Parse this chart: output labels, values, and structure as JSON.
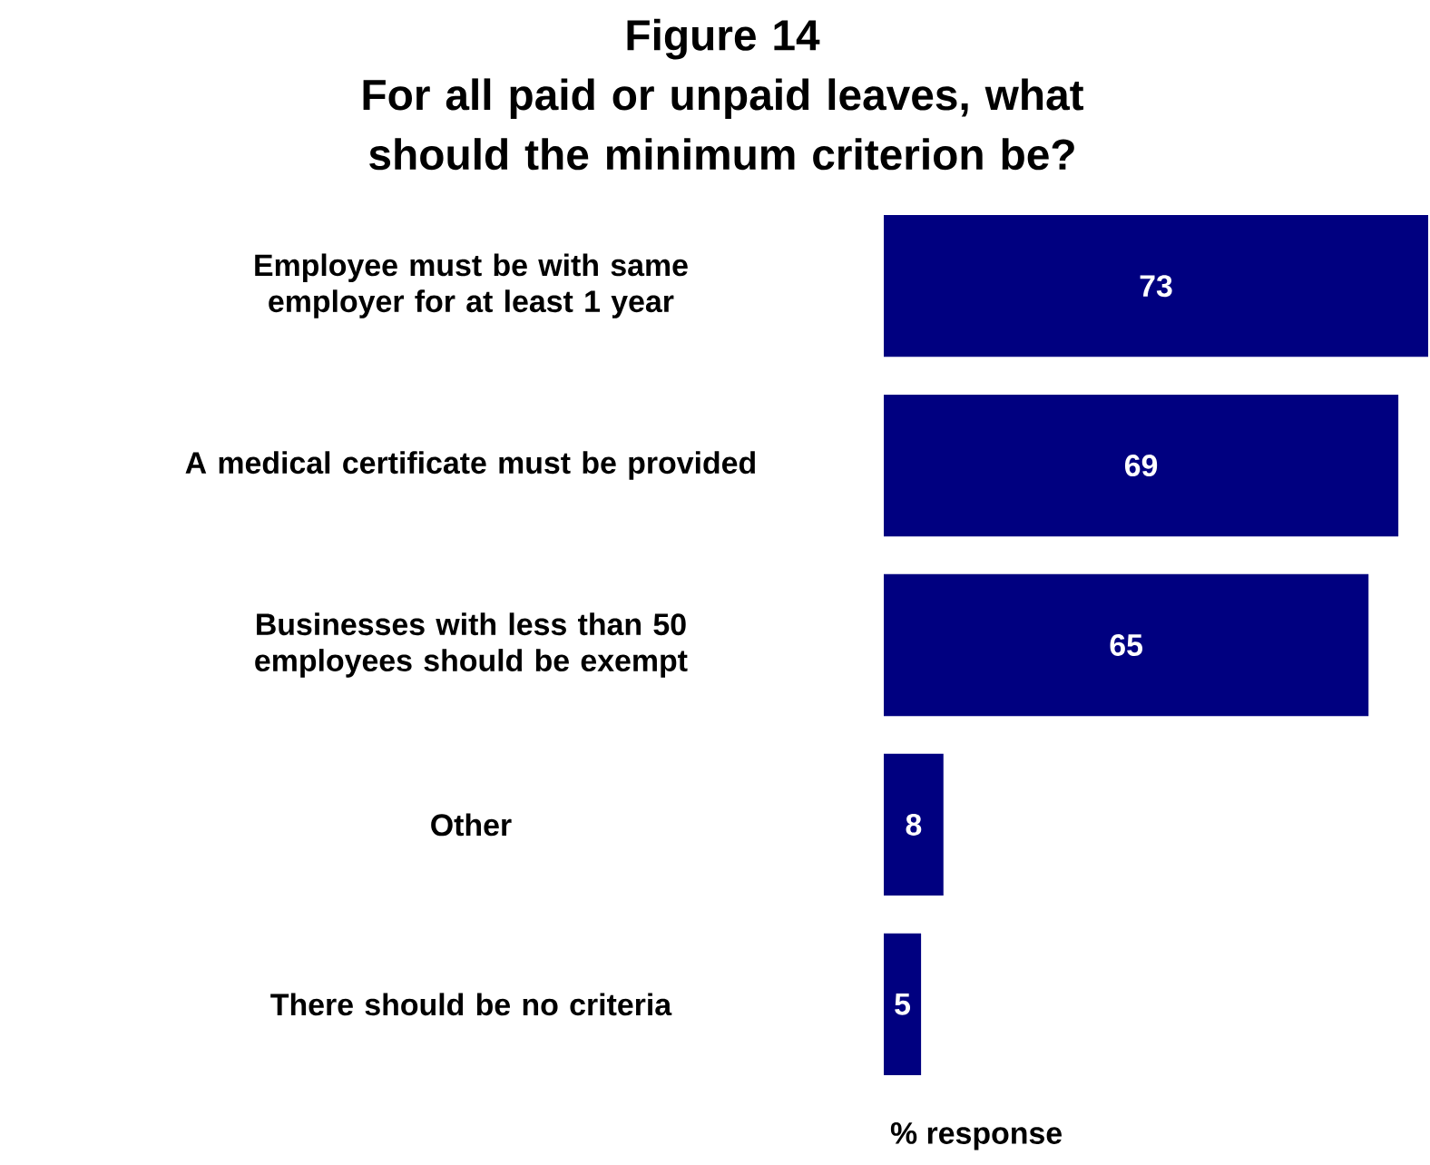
{
  "chart_data": {
    "type": "bar",
    "orientation": "horizontal",
    "title": "Figure 14",
    "subtitle": "For all paid or unpaid leaves, what should the minimum criterion be?",
    "categories": [
      "Employee must be with same employer for at least 1 year",
      "A medical certificate must be provided",
      "Businesses with less than 50 employees should be exempt",
      "Other",
      "There should be no criteria"
    ],
    "values": [
      73,
      69,
      65,
      8,
      5
    ],
    "color": "#000080",
    "data_labels": true,
    "xlabel": "% response"
  }
}
